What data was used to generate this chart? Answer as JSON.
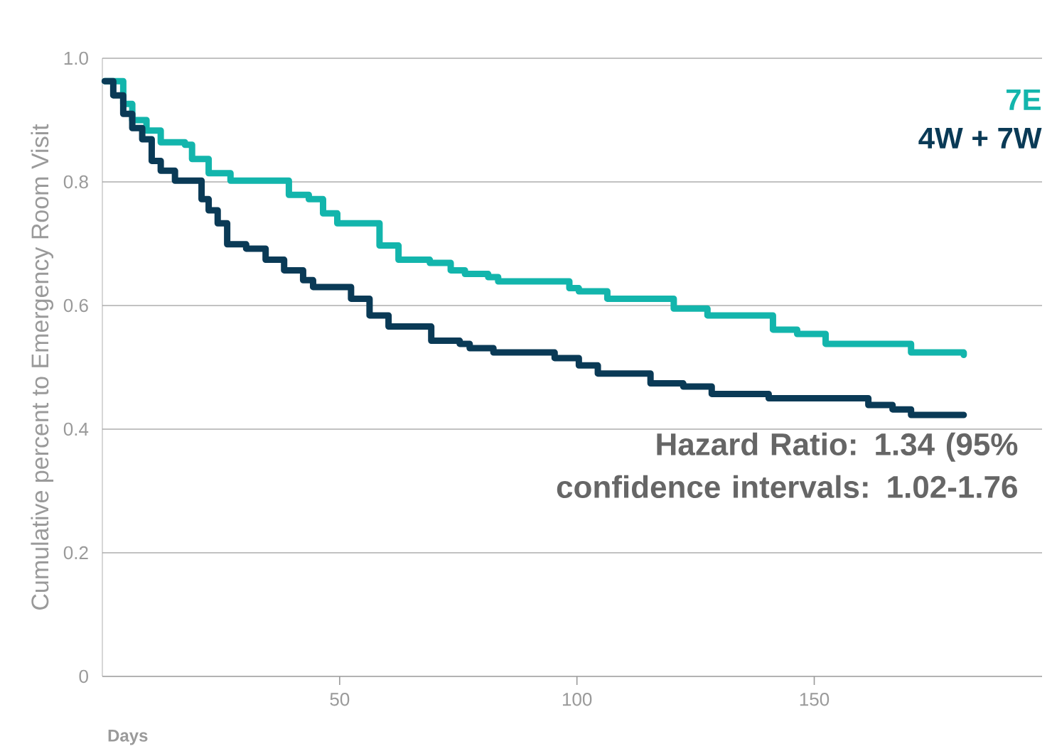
{
  "chart_data": {
    "type": "step",
    "xlabel": "Days",
    "ylabel": "Cumulative percent to Emergency Room Visit",
    "xlim": [
      0,
      198
    ],
    "ylim": [
      0,
      1
    ],
    "xticks": [
      50,
      100,
      150
    ],
    "yticks": [
      0,
      0.2,
      0.4,
      0.6,
      0.8,
      {
        "value": 1,
        "label": "1.0"
      }
    ],
    "grid": "y",
    "legend": "top right",
    "annotations": [
      "Hazard Ratio: 1.34 (95% confidence intervals: 1.02-1.76"
    ],
    "series": [
      {
        "name": "7E",
        "color": "#13b5ac",
        "x": [
          0.5,
          4.4,
          6.3,
          9.3,
          12.3,
          17.4,
          18.9,
          22.4,
          27,
          39.3,
          43.5,
          46.5,
          49.5,
          58.4,
          62.4,
          69,
          73.4,
          76.4,
          81.3,
          83.4,
          98.4,
          100.4,
          106.4,
          120.4,
          127.5,
          141.3,
          146.4,
          152.4,
          170.4,
          181.5
        ],
        "values": [
          0.963,
          0.926,
          0.9,
          0.883,
          0.864,
          0.86,
          0.837,
          0.814,
          0.802,
          0.779,
          0.772,
          0.749,
          0.733,
          0.697,
          0.674,
          0.669,
          0.657,
          0.651,
          0.646,
          0.639,
          0.628,
          0.623,
          0.611,
          0.595,
          0.584,
          0.561,
          0.554,
          0.538,
          0.524,
          0.52
        ]
      },
      {
        "name": "4W + 7W",
        "color": "#0a3a56",
        "x": [
          0.5,
          2.3,
          4.4,
          6.3,
          8.4,
          10.4,
          12.3,
          15.3,
          20.9,
          22.4,
          24.3,
          26.3,
          30.3,
          34.4,
          38.3,
          42.3,
          44.4,
          52.4,
          56.3,
          60.3,
          69.3,
          75.3,
          77.4,
          82.4,
          95.3,
          100.4,
          104.4,
          115.5,
          122.4,
          128.4,
          140.4,
          161.4,
          166.5,
          170.4,
          181.5
        ],
        "values": [
          0.963,
          0.94,
          0.91,
          0.887,
          0.869,
          0.834,
          0.818,
          0.802,
          0.772,
          0.754,
          0.733,
          0.699,
          0.692,
          0.674,
          0.657,
          0.641,
          0.63,
          0.611,
          0.584,
          0.566,
          0.543,
          0.538,
          0.531,
          0.524,
          0.515,
          0.503,
          0.49,
          0.474,
          0.469,
          0.457,
          0.45,
          0.439,
          0.432,
          0.423,
          0.423
        ]
      }
    ]
  }
}
